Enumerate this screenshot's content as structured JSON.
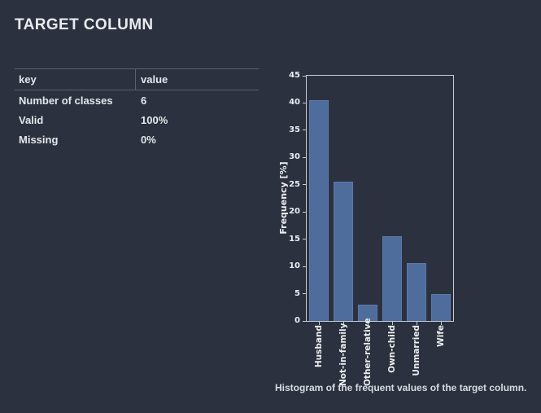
{
  "header": {
    "title": "TARGET COLUMN"
  },
  "table": {
    "columns": [
      "key",
      "value"
    ],
    "rows": [
      {
        "key": "Number of classes",
        "value": "6"
      },
      {
        "key": "Valid",
        "value": "100%"
      },
      {
        "key": "Missing",
        "value": "0%"
      }
    ]
  },
  "chart": {
    "caption": "Histogram of the frequent values of the target column."
  },
  "chart_data": {
    "type": "bar",
    "categories": [
      "Husband",
      "Not-in-family",
      "Other-relative",
      "Own-child",
      "Unmarried",
      "Wife"
    ],
    "values": [
      40.5,
      25.5,
      3.0,
      15.5,
      10.6,
      4.9
    ],
    "title": "",
    "xlabel": "",
    "ylabel": "Frequency [%]",
    "ylim": [
      0,
      45
    ],
    "yticks": [
      0,
      5,
      10,
      15,
      20,
      25,
      30,
      35,
      40,
      45
    ],
    "grid": false,
    "legend_position": "none",
    "bar_color": "#4e6c9c",
    "axis_color": "#c7ccd1"
  },
  "colors": {
    "background": "#2b313f",
    "title_text": "#e9ebee",
    "table_text": "#e4e7ea",
    "table_border": "#5c6169",
    "chart_frame": "#c7ccd1",
    "chart_text": "#eceef0",
    "bar_fill": "#4e6c9c",
    "caption_text": "#d8dbdf"
  }
}
